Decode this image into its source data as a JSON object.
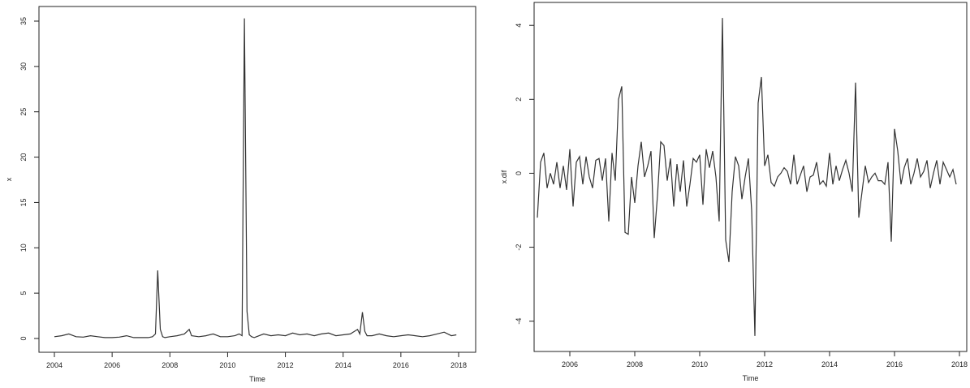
{
  "chart_data": [
    {
      "type": "line",
      "title": "",
      "xlabel": "Time",
      "ylabel": "x",
      "xlim": [
        2004,
        2018
      ],
      "ylim": [
        0,
        35
      ],
      "x_ticks": [
        "2004",
        "2006",
        "2008",
        "2010",
        "2012",
        "2014",
        "2016",
        "2018"
      ],
      "y_ticks": [
        "0",
        "5",
        "10",
        "15",
        "20",
        "25",
        "30",
        "35"
      ],
      "grid": false,
      "series": [
        {
          "x": [
            2004.0,
            2004.25,
            2004.5,
            2004.75,
            2005.0,
            2005.25,
            2005.5,
            2005.75,
            2006.0,
            2006.25,
            2006.5,
            2006.75,
            2007.0,
            2007.25,
            2007.4,
            2007.5,
            2007.58,
            2007.67,
            2007.75,
            2007.83,
            2008.0,
            2008.25,
            2008.5,
            2008.67,
            2008.75,
            2009.0,
            2009.25,
            2009.5,
            2009.75,
            2010.0,
            2010.25,
            2010.4,
            2010.5,
            2010.58,
            2010.67,
            2010.75,
            2010.83,
            2010.92,
            2011.0,
            2011.25,
            2011.5,
            2011.75,
            2012.0,
            2012.25,
            2012.5,
            2012.75,
            2013.0,
            2013.25,
            2013.5,
            2013.75,
            2014.0,
            2014.25,
            2014.5,
            2014.58,
            2014.67,
            2014.75,
            2014.83,
            2015.0,
            2015.25,
            2015.5,
            2015.75,
            2016.0,
            2016.25,
            2016.5,
            2016.75,
            2017.0,
            2017.25,
            2017.5,
            2017.75,
            2017.92
          ],
          "y": [
            0.2,
            0.3,
            0.5,
            0.2,
            0.15,
            0.3,
            0.2,
            0.1,
            0.1,
            0.15,
            0.3,
            0.1,
            0.1,
            0.1,
            0.2,
            0.5,
            7.5,
            1.0,
            0.2,
            0.1,
            0.2,
            0.3,
            0.5,
            1.0,
            0.3,
            0.2,
            0.3,
            0.5,
            0.2,
            0.2,
            0.3,
            0.5,
            0.3,
            35.3,
            3.0,
            0.4,
            0.2,
            0.1,
            0.2,
            0.5,
            0.3,
            0.4,
            0.3,
            0.6,
            0.4,
            0.5,
            0.3,
            0.5,
            0.6,
            0.3,
            0.4,
            0.5,
            1.0,
            0.5,
            2.9,
            0.8,
            0.3,
            0.3,
            0.5,
            0.3,
            0.2,
            0.3,
            0.4,
            0.3,
            0.2,
            0.3,
            0.5,
            0.7,
            0.3,
            0.4
          ]
        }
      ]
    },
    {
      "type": "line",
      "title": "",
      "xlabel": "Time",
      "ylabel": "x.dif",
      "xlim": [
        2004.9,
        2018.2
      ],
      "ylim": [
        -4.6,
        4.4
      ],
      "x_ticks": [
        "2006",
        "2008",
        "2010",
        "2012",
        "2014",
        "2016",
        "2018"
      ],
      "y_ticks": [
        "-4",
        "-2",
        "0",
        "2",
        "4"
      ],
      "grid": false,
      "series": [
        {
          "x": [
            2005.0,
            2005.1,
            2005.2,
            2005.3,
            2005.4,
            2005.5,
            2005.6,
            2005.7,
            2005.8,
            2005.9,
            2006.0,
            2006.1,
            2006.2,
            2006.3,
            2006.4,
            2006.5,
            2006.6,
            2006.7,
            2006.8,
            2006.9,
            2007.0,
            2007.1,
            2007.2,
            2007.3,
            2007.4,
            2007.5,
            2007.6,
            2007.7,
            2007.8,
            2007.9,
            2008.0,
            2008.1,
            2008.2,
            2008.3,
            2008.4,
            2008.5,
            2008.6,
            2008.7,
            2008.8,
            2008.9,
            2009.0,
            2009.1,
            2009.2,
            2009.3,
            2009.4,
            2009.5,
            2009.6,
            2009.7,
            2009.8,
            2009.9,
            2010.0,
            2010.1,
            2010.2,
            2010.3,
            2010.4,
            2010.5,
            2010.6,
            2010.7,
            2010.8,
            2010.9,
            2011.0,
            2011.1,
            2011.2,
            2011.3,
            2011.4,
            2011.5,
            2011.6,
            2011.7,
            2011.8,
            2011.9,
            2012.0,
            2012.1,
            2012.2,
            2012.3,
            2012.4,
            2012.5,
            2012.6,
            2012.7,
            2012.8,
            2012.9,
            2013.0,
            2013.1,
            2013.2,
            2013.3,
            2013.4,
            2013.5,
            2013.6,
            2013.7,
            2013.8,
            2013.9,
            2014.0,
            2014.1,
            2014.2,
            2014.3,
            2014.4,
            2014.5,
            2014.6,
            2014.7,
            2014.8,
            2014.9,
            2015.0,
            2015.1,
            2015.2,
            2015.3,
            2015.4,
            2015.5,
            2015.6,
            2015.7,
            2015.8,
            2015.9,
            2016.0,
            2016.1,
            2016.2,
            2016.3,
            2016.4,
            2016.5,
            2016.6,
            2016.7,
            2016.8,
            2016.9,
            2017.0,
            2017.1,
            2017.2,
            2017.3,
            2017.4,
            2017.5,
            2017.6,
            2017.7,
            2017.8,
            2017.9
          ],
          "y": [
            -1.2,
            0.3,
            0.55,
            -0.4,
            0.0,
            -0.3,
            0.3,
            -0.4,
            0.2,
            -0.45,
            0.65,
            -0.9,
            0.3,
            0.45,
            -0.3,
            0.45,
            -0.1,
            -0.4,
            0.35,
            0.4,
            -0.2,
            0.4,
            -1.3,
            0.55,
            -0.2,
            2.0,
            2.35,
            -1.6,
            -1.65,
            -0.1,
            -0.8,
            0.2,
            0.85,
            -0.1,
            0.2,
            0.6,
            -1.75,
            -0.6,
            0.85,
            0.75,
            -0.2,
            0.4,
            -0.9,
            0.25,
            -0.5,
            0.35,
            -0.9,
            -0.3,
            0.4,
            0.3,
            0.5,
            -0.85,
            0.65,
            0.15,
            0.6,
            -0.1,
            -1.3,
            4.2,
            -1.8,
            -2.4,
            -0.5,
            0.45,
            0.2,
            -0.7,
            -0.1,
            0.4,
            -1.0,
            -4.4,
            1.9,
            2.6,
            0.2,
            0.5,
            -0.25,
            -0.35,
            -0.1,
            0.0,
            0.15,
            0.05,
            -0.3,
            0.5,
            -0.3,
            -0.05,
            0.2,
            -0.5,
            -0.1,
            -0.05,
            0.3,
            -0.3,
            -0.2,
            -0.35,
            0.55,
            -0.3,
            0.2,
            -0.2,
            0.1,
            0.35,
            0.0,
            -0.5,
            2.45,
            -1.2,
            -0.5,
            0.2,
            -0.25,
            -0.1,
            0.0,
            -0.2,
            -0.2,
            -0.3,
            0.3,
            -1.85,
            1.2,
            0.6,
            -0.3,
            0.15,
            0.4,
            -0.3,
            0.0,
            0.4,
            -0.1,
            0.05,
            0.35,
            -0.4,
            0.0,
            0.35,
            -0.3,
            0.3,
            0.1,
            -0.1,
            0.1,
            -0.3
          ]
        }
      ]
    }
  ]
}
